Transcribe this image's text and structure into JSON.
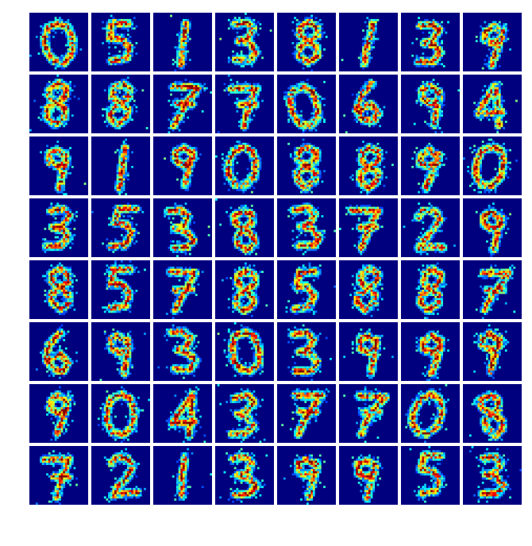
{
  "figure": {
    "rows": 8,
    "cols": 8,
    "colormap": "jet",
    "background_color": "#00007f",
    "page_color": "#ffffff"
  },
  "tiles": [
    {
      "digit": "0"
    },
    {
      "digit": "5"
    },
    {
      "digit": "1"
    },
    {
      "digit": "3"
    },
    {
      "digit": "8"
    },
    {
      "digit": "1"
    },
    {
      "digit": "3"
    },
    {
      "digit": "9"
    },
    {
      "digit": "8"
    },
    {
      "digit": "8"
    },
    {
      "digit": "7"
    },
    {
      "digit": "7"
    },
    {
      "digit": "0"
    },
    {
      "digit": "6"
    },
    {
      "digit": "9"
    },
    {
      "digit": "4"
    },
    {
      "digit": "9"
    },
    {
      "digit": "1"
    },
    {
      "digit": "9"
    },
    {
      "digit": "0"
    },
    {
      "digit": "8"
    },
    {
      "digit": "8"
    },
    {
      "digit": "9"
    },
    {
      "digit": "0"
    },
    {
      "digit": "3"
    },
    {
      "digit": "5"
    },
    {
      "digit": "3"
    },
    {
      "digit": "8"
    },
    {
      "digit": "3"
    },
    {
      "digit": "7"
    },
    {
      "digit": "2"
    },
    {
      "digit": "9"
    },
    {
      "digit": "8"
    },
    {
      "digit": "5"
    },
    {
      "digit": "7"
    },
    {
      "digit": "8"
    },
    {
      "digit": "5"
    },
    {
      "digit": "8"
    },
    {
      "digit": "8"
    },
    {
      "digit": "7"
    },
    {
      "digit": "6"
    },
    {
      "digit": "9"
    },
    {
      "digit": "3"
    },
    {
      "digit": "0"
    },
    {
      "digit": "3"
    },
    {
      "digit": "9"
    },
    {
      "digit": "9"
    },
    {
      "digit": "9"
    },
    {
      "digit": "9"
    },
    {
      "digit": "0"
    },
    {
      "digit": "4"
    },
    {
      "digit": "3"
    },
    {
      "digit": "7"
    },
    {
      "digit": "7"
    },
    {
      "digit": "0"
    },
    {
      "digit": "8"
    },
    {
      "digit": "7"
    },
    {
      "digit": "2"
    },
    {
      "digit": "1"
    },
    {
      "digit": "3"
    },
    {
      "digit": "9"
    },
    {
      "digit": "9"
    },
    {
      "digit": "5"
    },
    {
      "digit": "3"
    }
  ]
}
